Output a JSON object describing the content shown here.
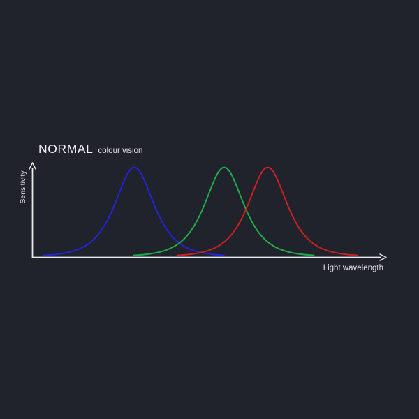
{
  "page": {
    "background": "#20222c"
  },
  "chart_data": {
    "type": "line",
    "title": "NORMAL",
    "subtitle": "colour vision",
    "xlabel": "Light wavelength",
    "ylabel": "Sensitivity",
    "grid": false,
    "legend": false,
    "ticks": [],
    "axis_color": "#e9e9e9",
    "label_color": "#e3e3e3",
    "background": "#20222c",
    "xlim_norm": [
      0,
      1
    ],
    "ylim_norm": [
      0,
      1
    ],
    "profile": "sech-bell",
    "description": "Three overlapping cone-sensitivity bell curves (blue, green, red) on unlabelled arrowed axes",
    "series": [
      {
        "name": "short-wavelength-cone-blue",
        "color": "#2424d6",
        "peak_x": 0.288,
        "peak_y": 0.94,
        "width": 0.049,
        "span": 0.256
      },
      {
        "name": "medium-wavelength-cone-green",
        "color": "#22ac48",
        "peak_x": 0.542,
        "peak_y": 0.94,
        "width": 0.049,
        "span": 0.256
      },
      {
        "name": "long-wavelength-cone-red",
        "color": "#ce2020",
        "peak_x": 0.665,
        "peak_y": 0.94,
        "width": 0.049,
        "span": 0.256
      }
    ]
  }
}
